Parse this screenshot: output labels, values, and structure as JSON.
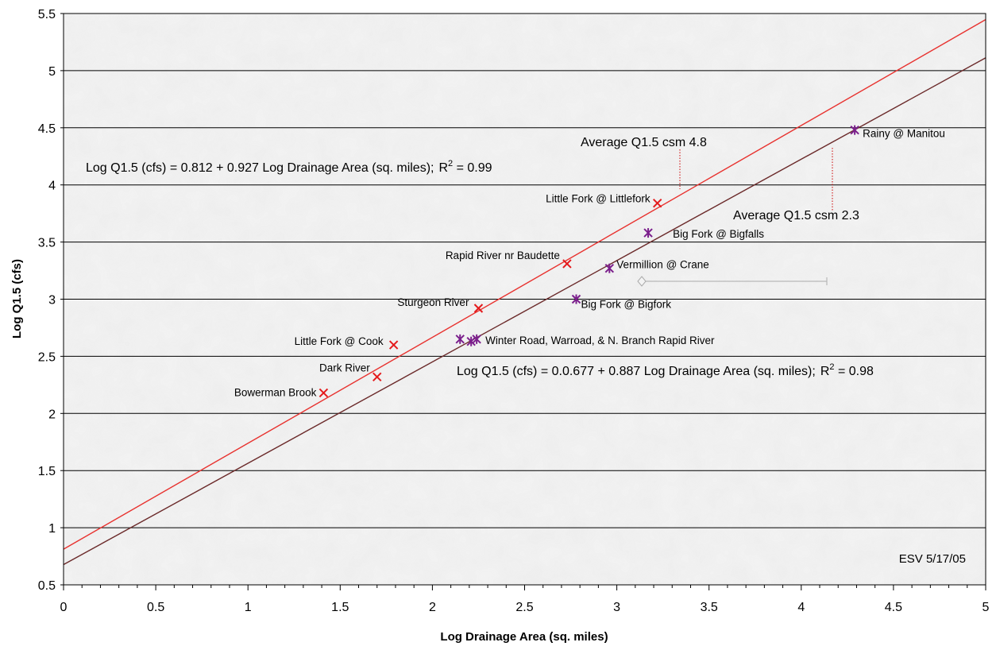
{
  "chart_data": {
    "type": "scatter",
    "title": "",
    "xlabel": "Log Drainage Area (sq. miles)",
    "ylabel": "Log Q1.5 (cfs)",
    "xlim": [
      0,
      5
    ],
    "ylim": [
      0.5,
      5.5
    ],
    "x_ticks": [
      "0",
      "0.5",
      "1",
      "1.5",
      "2",
      "2.5",
      "3",
      "3.5",
      "4",
      "4.5",
      "5"
    ],
    "y_ticks": [
      "0.5",
      "1",
      "1.5",
      "2",
      "2.5",
      "3",
      "3.5",
      "4",
      "4.5",
      "5",
      "5.5"
    ],
    "grid": "horizontal",
    "colors": {
      "series_red": "#e41a1c",
      "series_purple": "#7b1f8c",
      "fit_red": "#e8322f",
      "fit_dark": "#6b2a2a",
      "gridline": "#000000",
      "leader": "#cc0000"
    },
    "series": [
      {
        "marker": "x",
        "color": "#e41a1c",
        "points": [
          {
            "x": 1.41,
            "y": 2.18,
            "label": "Bowerman Brook"
          },
          {
            "x": 1.7,
            "y": 2.32,
            "label": "Dark River"
          },
          {
            "x": 1.79,
            "y": 2.6,
            "label": "Little Fork @ Cook"
          },
          {
            "x": 2.25,
            "y": 2.92,
            "label": "Sturgeon River"
          },
          {
            "x": 2.73,
            "y": 3.31,
            "label": "Rapid River nr Baudette"
          },
          {
            "x": 3.22,
            "y": 3.84,
            "label": "Little Fork @ Littlefork"
          }
        ]
      },
      {
        "marker": "star",
        "color": "#7b1f8c",
        "points": [
          {
            "x": 2.15,
            "y": 2.65,
            "label": ""
          },
          {
            "x": 2.21,
            "y": 2.63,
            "label": ""
          },
          {
            "x": 2.24,
            "y": 2.65,
            "label": "Winter Road, Warroad, & N. Branch Rapid River"
          },
          {
            "x": 2.78,
            "y": 3.0,
            "label": "Big Fork @ Bigfork"
          },
          {
            "x": 2.96,
            "y": 3.27,
            "label": "Vermillion @ Crane"
          },
          {
            "x": 3.17,
            "y": 3.58,
            "label": "Big Fork @ Bigfalls"
          },
          {
            "x": 4.29,
            "y": 4.48,
            "label": "Rainy @ Manitou"
          }
        ]
      }
    ],
    "fits": [
      {
        "intercept": 0.812,
        "slope": 0.927,
        "equation": "Log Q1.5 (cfs) = 0.812 + 0.927 Log Drainage Area (sq. miles);",
        "r2_label": "R",
        "r2_value": " = 0.99",
        "callout": "Average Q1.5 csm 4.8"
      },
      {
        "intercept": 0.677,
        "slope": 0.887,
        "equation": "Log Q1.5 (cfs) = 0.0.677 + 0.887 Log Drainage Area (sq. miles);",
        "r2_label": "R",
        "r2_value": " = 0.98",
        "callout": "Average Q1.5 csm 2.3"
      }
    ],
    "annotation": "ESV 5/17/05"
  }
}
